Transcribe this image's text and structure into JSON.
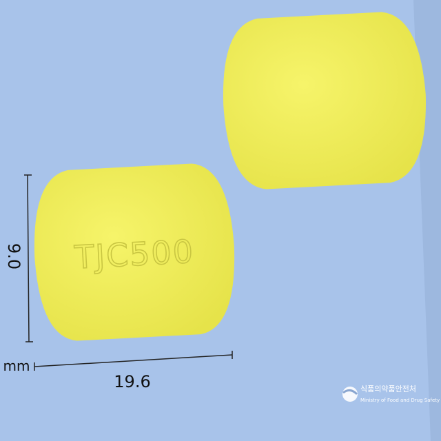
{
  "dimensions": {
    "height": "9.0",
    "unit": "mm",
    "length": "19.6"
  },
  "imprint": "TJC500",
  "logo": {
    "name_ko": "식품의약품안전처",
    "name_en": "Ministry of Food and Drug Safety"
  }
}
